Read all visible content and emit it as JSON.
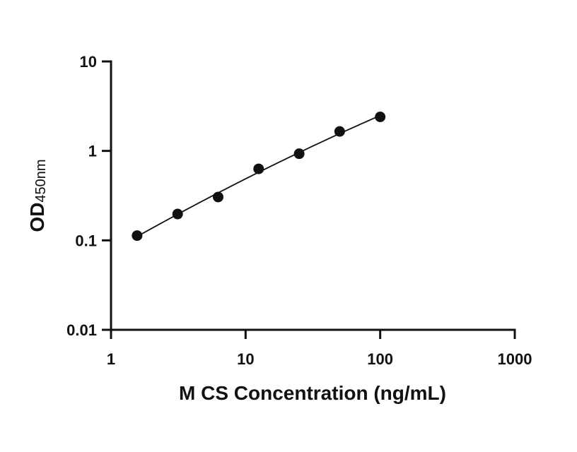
{
  "chart_data": {
    "type": "scatter",
    "x_scale": "log",
    "y_scale": "log",
    "xlabel": "M CS Concentration (ng/mL)",
    "ylabel": "OD",
    "ylabel_sub": "450nm",
    "xlim": [
      1,
      1000
    ],
    "ylim": [
      0.01,
      10
    ],
    "x_ticks": [
      1,
      10,
      100,
      1000
    ],
    "x_tick_labels": [
      "1",
      "10",
      "100",
      "1000"
    ],
    "y_ticks": [
      0.01,
      0.1,
      1,
      10
    ],
    "y_tick_labels": [
      "0.01",
      "0.1",
      "1",
      "10"
    ],
    "grid": false,
    "legend": "none",
    "fit_curve": true,
    "series": [
      {
        "x": [
          1.5625,
          3.125,
          6.25,
          12.5,
          25,
          50,
          100
        ],
        "y": [
          0.113,
          0.197,
          0.305,
          0.63,
          0.93,
          1.65,
          2.4
        ]
      }
    ]
  }
}
